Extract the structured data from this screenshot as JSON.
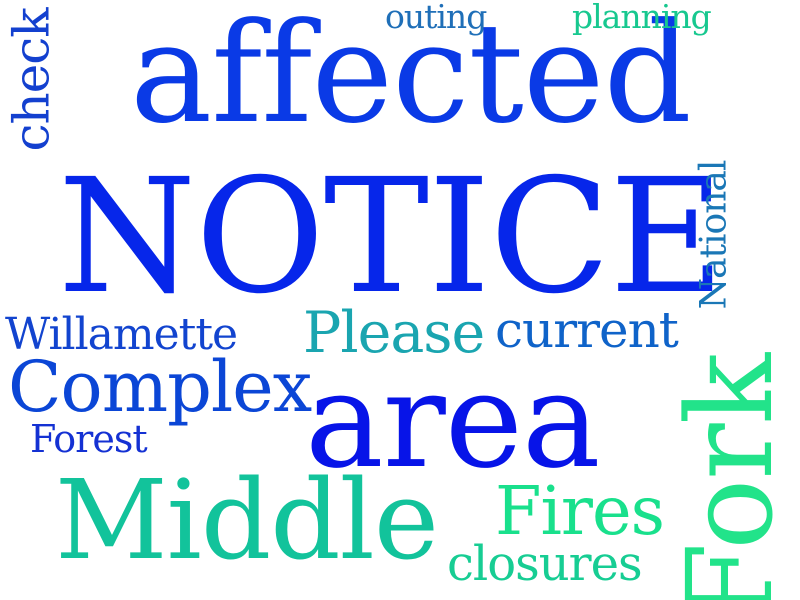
{
  "words": {
    "affected": {
      "text": "affected",
      "color": "#0a3ae6"
    },
    "notice": {
      "text": "NOTICE",
      "color": "#0626ea"
    },
    "area": {
      "text": "area",
      "color": "#0714e8"
    },
    "middle": {
      "text": "Middle",
      "color": "#12c39b"
    },
    "complex": {
      "text": "Complex",
      "color": "#0b46d6"
    },
    "please": {
      "text": "Please",
      "color": "#1aa5b0"
    },
    "current": {
      "text": "current",
      "color": "#0f63c9"
    },
    "willamette": {
      "text": "Willamette",
      "color": "#1244cf"
    },
    "forest": {
      "text": "Forest",
      "color": "#1431d3"
    },
    "fires": {
      "text": "Fires",
      "color": "#19e08c"
    },
    "closures": {
      "text": "closures",
      "color": "#17cd93"
    },
    "outing": {
      "text": "outing",
      "color": "#1f6fb8"
    },
    "planning": {
      "text": "planning",
      "color": "#17c88f"
    },
    "check": {
      "text": "check",
      "color": "#1340cf"
    },
    "national": {
      "text": "National",
      "color": "#1a77b6"
    },
    "fork": {
      "text": "Fork",
      "color": "#22e38a"
    }
  }
}
